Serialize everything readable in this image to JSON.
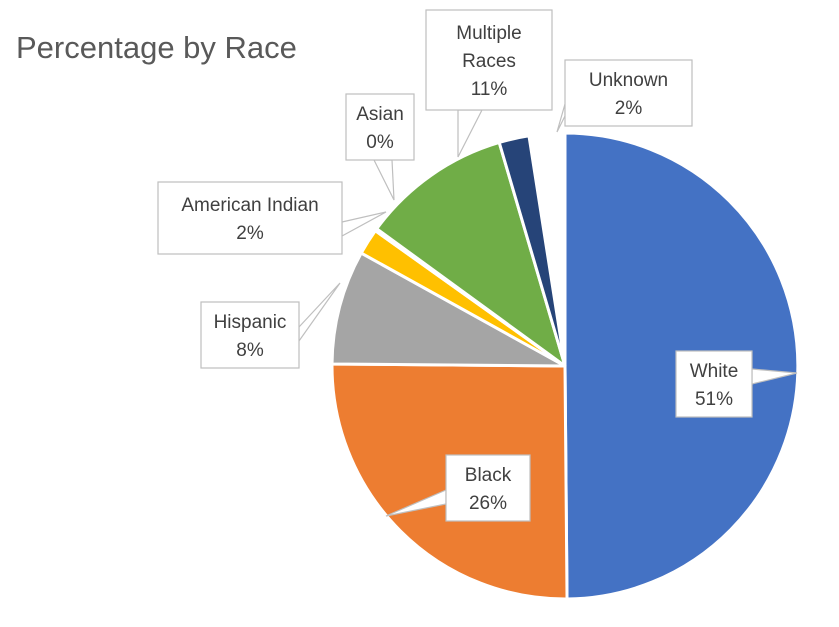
{
  "chart_data": {
    "type": "pie",
    "title": "Percentage by Race",
    "slices": [
      {
        "category": "White",
        "value": 51,
        "label": "51%",
        "color": "#4472C4"
      },
      {
        "category": "Black",
        "value": 26,
        "label": "26%",
        "color": "#ED7D31"
      },
      {
        "category": "Hispanic",
        "value": 8,
        "label": "8%",
        "color": "#A5A5A5"
      },
      {
        "category": "American Indian",
        "value": 2,
        "label": "2%",
        "color": "#FFC000"
      },
      {
        "category": "Asian",
        "value": 0,
        "label": "0%",
        "color": "#5B9BD5"
      },
      {
        "category": "Multiple Races",
        "value": 11,
        "label": "11%",
        "color": "#70AD47"
      },
      {
        "category": "Unknown",
        "value": 2,
        "label": "2%",
        "color": "#264478"
      }
    ],
    "legend": "none",
    "data_labels": "callout"
  }
}
